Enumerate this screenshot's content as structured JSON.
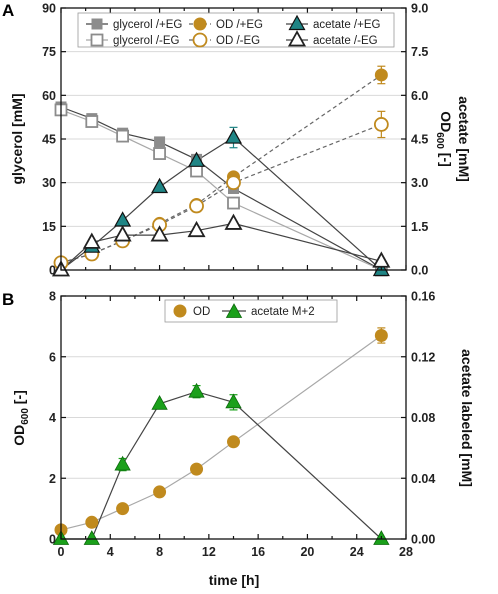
{
  "colors": {
    "glycerol": "#8c8c8c",
    "od": "#c08a1e",
    "acetate_teal": "#1f8585",
    "acetate_open": "#222222",
    "acetate_green": "#1aa01a",
    "line_dark": "#444444",
    "line_light": "#a8a8a8",
    "od_dashed": "#666666",
    "grid": "#d9d9d9"
  },
  "chart_data": [
    {
      "panel": "A",
      "type": "line",
      "xlim": [
        0,
        28
      ],
      "left_axis": {
        "label_main": "glycerol",
        "label_unit": "[mM]",
        "ylim": [
          0,
          90
        ],
        "ticks": [
          "0",
          "15",
          "30",
          "45",
          "60",
          "75",
          "90"
        ]
      },
      "right_axis": {
        "label_main_od": "OD",
        "label_sub_od": "600",
        "label_unit_od": "[-]",
        "label_acetate": "acetate [mM]",
        "ylim": [
          0,
          9
        ],
        "ticks": [
          "0.0",
          "1.5",
          "3.0",
          "4.5",
          "6.0",
          "7.5",
          "9.0"
        ]
      },
      "grid": true,
      "legend_position": "top",
      "series": [
        {
          "name": "glycerol /+EG",
          "axis": "left",
          "marker": "square-filled",
          "x": [
            0,
            2.5,
            5,
            8,
            11,
            14,
            26
          ],
          "y": [
            56,
            52,
            47,
            44,
            38,
            28,
            0
          ]
        },
        {
          "name": "glycerol /-EG",
          "axis": "left",
          "marker": "square-open",
          "x": [
            0,
            2.5,
            5,
            8,
            11,
            14,
            26
          ],
          "y": [
            55,
            51,
            46,
            40,
            34,
            23,
            0
          ]
        },
        {
          "name": "OD /+EG",
          "axis": "right",
          "marker": "circle-filled",
          "x": [
            0,
            2.5,
            5,
            8,
            11,
            14,
            26
          ],
          "y": [
            0.25,
            0.55,
            1.0,
            1.6,
            2.25,
            3.2,
            6.7
          ],
          "error": [
            0,
            0,
            0,
            0,
            0,
            0.15,
            0.3
          ]
        },
        {
          "name": "OD /-EG",
          "axis": "right",
          "marker": "circle-open",
          "x": [
            0,
            2.5,
            5,
            8,
            11,
            14,
            26
          ],
          "y": [
            0.25,
            0.55,
            1.0,
            1.55,
            2.2,
            3.0,
            5.0
          ],
          "error": [
            0,
            0,
            0,
            0,
            0,
            0,
            0.45
          ]
        },
        {
          "name": "acetate /+EG",
          "axis": "right",
          "marker": "triangle-filled",
          "x": [
            0,
            2.5,
            5,
            8,
            11,
            14,
            26
          ],
          "y": [
            0.0,
            0.8,
            1.7,
            2.85,
            3.75,
            4.55,
            0.0
          ],
          "error": [
            0,
            0,
            0,
            0,
            0.2,
            0.35,
            0
          ]
        },
        {
          "name": "acetate /-EG",
          "axis": "right",
          "marker": "triangle-open",
          "x": [
            0,
            2.5,
            5,
            8,
            11,
            14,
            26
          ],
          "y": [
            0.0,
            0.95,
            1.2,
            1.2,
            1.35,
            1.6,
            0.3
          ]
        }
      ]
    },
    {
      "panel": "B",
      "type": "line",
      "xlabel": "time [h]",
      "xlim": [
        0,
        28
      ],
      "x_ticks": [
        "0",
        "4",
        "8",
        "12",
        "16",
        "20",
        "24",
        "28"
      ],
      "left_axis": {
        "label_main": "OD",
        "label_sub": "600",
        "label_unit": "[-]",
        "ylim": [
          0,
          8
        ],
        "ticks": [
          "0",
          "2",
          "4",
          "6",
          "8"
        ]
      },
      "right_axis": {
        "label": "acetate labeled [mM]",
        "ylim": [
          0,
          0.16
        ],
        "ticks": [
          "0.00",
          "0.04",
          "0.08",
          "0.12",
          "0.16"
        ]
      },
      "grid": true,
      "legend_position": "top",
      "series": [
        {
          "name": "OD",
          "axis": "left",
          "marker": "circle-filled",
          "x": [
            0,
            2.5,
            5,
            8,
            11,
            14,
            26
          ],
          "y": [
            0.3,
            0.55,
            1.0,
            1.55,
            2.3,
            3.2,
            6.7
          ],
          "error": [
            0,
            0,
            0,
            0,
            0,
            0.15,
            0.25
          ]
        },
        {
          "name": "acetate M+2",
          "axis": "right",
          "marker": "triangle-filled",
          "x": [
            0,
            2.5,
            5,
            8,
            11,
            14,
            26
          ],
          "y": [
            0.0,
            0.0,
            0.049,
            0.089,
            0.097,
            0.09,
            0.0
          ],
          "error": [
            0,
            0,
            0.004,
            0,
            0.004,
            0.005,
            0
          ]
        }
      ]
    }
  ]
}
